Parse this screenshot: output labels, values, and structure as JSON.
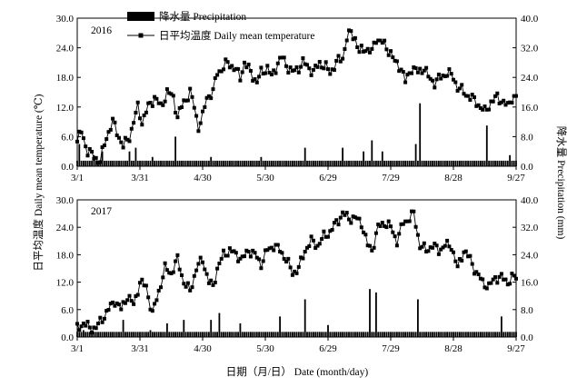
{
  "figure": {
    "y_left_label": "日平均温度 Daily mean temperature (℃)",
    "y_right_label": "降水量 Precipitation (mm)",
    "x_label": "日期（月/日） Date (month/day)",
    "legend": {
      "precip_label": "降水量 Precipitation",
      "temp_label": "日平均温度 Daily mean temperature"
    }
  },
  "chart_data": [
    {
      "type": "bar",
      "panel_label": "2016",
      "x_ticks": [
        "3/1",
        "3/31",
        "4/30",
        "5/30",
        "6/29",
        "7/29",
        "8/28",
        "9/27"
      ],
      "x_range_days": [
        0,
        210
      ],
      "y_left_range": [
        0,
        30
      ],
      "y_left_ticks": [
        "0.0",
        "6.0",
        "12.0",
        "18.0",
        "24.0",
        "30.0"
      ],
      "y_right_range": [
        0,
        40
      ],
      "y_right_ticks": [
        "0.0",
        "8.0",
        "16.0",
        "24.0",
        "32.0",
        "40.0"
      ],
      "series": [
        {
          "name": "日平均温度 Daily mean temperature",
          "kind": "line",
          "axis": "left",
          "anchors": [
            [
              0,
              5
            ],
            [
              2,
              7
            ],
            [
              5,
              3
            ],
            [
              8,
              2
            ],
            [
              11,
              1
            ],
            [
              14,
              6
            ],
            [
              17,
              9
            ],
            [
              19,
              7
            ],
            [
              22,
              4
            ],
            [
              25,
              6
            ],
            [
              27,
              9
            ],
            [
              29,
              12
            ],
            [
              31,
              9
            ],
            [
              34,
              12
            ],
            [
              37,
              14
            ],
            [
              40,
              12
            ],
            [
              43,
              15
            ],
            [
              46,
              14
            ],
            [
              48,
              10
            ],
            [
              51,
              13
            ],
            [
              54,
              15
            ],
            [
              56,
              12
            ],
            [
              58,
              8
            ],
            [
              60,
              10
            ],
            [
              62,
              14
            ],
            [
              65,
              15
            ],
            [
              67,
              19
            ],
            [
              70,
              20
            ],
            [
              72,
              21
            ],
            [
              75,
              20
            ],
            [
              78,
              18
            ],
            [
              80,
              21
            ],
            [
              83,
              19
            ],
            [
              86,
              17
            ],
            [
              88,
              19
            ],
            [
              91,
              20
            ],
            [
              93,
              18
            ],
            [
              96,
              21
            ],
            [
              98,
              22
            ],
            [
              101,
              20
            ],
            [
              103,
              19
            ],
            [
              106,
              20
            ],
            [
              108,
              21
            ],
            [
              111,
              20
            ],
            [
              113,
              19
            ],
            [
              116,
              21
            ],
            [
              119,
              20
            ],
            [
              121,
              19
            ],
            [
              124,
              21
            ],
            [
              127,
              22
            ],
            [
              129,
              26
            ],
            [
              131,
              27
            ],
            [
              133,
              26
            ],
            [
              135,
              23
            ],
            [
              138,
              24
            ],
            [
              141,
              23
            ],
            [
              143,
              26
            ],
            [
              146,
              25
            ],
            [
              148,
              24
            ],
            [
              150,
              23
            ],
            [
              152,
              21
            ],
            [
              155,
              20
            ],
            [
              157,
              17
            ],
            [
              160,
              20
            ],
            [
              163,
              19
            ],
            [
              166,
              20
            ],
            [
              168,
              18
            ],
            [
              171,
              17
            ],
            [
              174,
              18
            ],
            [
              177,
              19
            ],
            [
              180,
              18
            ],
            [
              182,
              16
            ],
            [
              185,
              15
            ],
            [
              188,
              14
            ],
            [
              191,
              13
            ],
            [
              193,
              12
            ],
            [
              195,
              11
            ],
            [
              198,
              13
            ],
            [
              201,
              14
            ],
            [
              204,
              13
            ],
            [
              206,
              12
            ],
            [
              208,
              14
            ]
          ],
          "jitter_amplitude": 1.2
        },
        {
          "name": "降水量 Precipitation",
          "kind": "bar",
          "axis": "right",
          "base_value": 1.5,
          "big_bars": [
            [
              1,
              6
            ],
            [
              8,
              3
            ],
            [
              12,
              4
            ],
            [
              25,
              4
            ],
            [
              28,
              5
            ],
            [
              36,
              2.5
            ],
            [
              47,
              8
            ],
            [
              64,
              2.5
            ],
            [
              88,
              2.5
            ],
            [
              109,
              5
            ],
            [
              127,
              5
            ],
            [
              137,
              4
            ],
            [
              141,
              7
            ],
            [
              146,
              4
            ],
            [
              162,
              6
            ],
            [
              164,
              17
            ],
            [
              196,
              11
            ],
            [
              207,
              3
            ]
          ]
        }
      ]
    },
    {
      "type": "bar",
      "panel_label": "2017",
      "x_ticks": [
        "3/1",
        "3/31",
        "4/30",
        "5/30",
        "6/29",
        "7/29",
        "8/28",
        "9/27"
      ],
      "x_range_days": [
        0,
        210
      ],
      "y_left_range": [
        0,
        30
      ],
      "y_left_ticks": [
        "0.0",
        "6.0",
        "12.0",
        "18.0",
        "24.0",
        "30.0"
      ],
      "y_right_range": [
        0,
        40
      ],
      "y_right_ticks": [
        "0.0",
        "8.0",
        "16.0",
        "24.0",
        "32.0",
        "40.0"
      ],
      "series": [
        {
          "name": "日平均温度 Daily mean temperature",
          "kind": "line",
          "axis": "left",
          "anchors": [
            [
              0,
              2
            ],
            [
              3,
              3
            ],
            [
              6,
              2
            ],
            [
              9,
              2
            ],
            [
              12,
              4
            ],
            [
              15,
              6
            ],
            [
              18,
              8
            ],
            [
              21,
              6
            ],
            [
              24,
              9
            ],
            [
              27,
              7
            ],
            [
              30,
              12
            ],
            [
              33,
              11
            ],
            [
              36,
              5
            ],
            [
              39,
              10
            ],
            [
              42,
              15
            ],
            [
              45,
              14
            ],
            [
              48,
              17
            ],
            [
              51,
              12
            ],
            [
              54,
              10
            ],
            [
              57,
              15
            ],
            [
              60,
              17
            ],
            [
              63,
              12
            ],
            [
              65,
              11
            ],
            [
              67,
              15
            ],
            [
              70,
              18
            ],
            [
              73,
              19
            ],
            [
              76,
              18
            ],
            [
              79,
              17
            ],
            [
              82,
              19
            ],
            [
              85,
              18
            ],
            [
              88,
              16
            ],
            [
              91,
              19
            ],
            [
              94,
              20
            ],
            [
              97,
              19
            ],
            [
              100,
              17
            ],
            [
              103,
              14
            ],
            [
              106,
              15
            ],
            [
              109,
              19
            ],
            [
              112,
              21
            ],
            [
              115,
              20
            ],
            [
              118,
              22
            ],
            [
              121,
              23
            ],
            [
              124,
              25
            ],
            [
              127,
              27
            ],
            [
              130,
              26
            ],
            [
              133,
              26
            ],
            [
              136,
              25
            ],
            [
              139,
              20
            ],
            [
              141,
              19
            ],
            [
              144,
              24
            ],
            [
              147,
              25
            ],
            [
              150,
              24
            ],
            [
              153,
              21
            ],
            [
              156,
              25
            ],
            [
              159,
              26
            ],
            [
              161,
              27
            ],
            [
              164,
              20
            ],
            [
              167,
              19
            ],
            [
              170,
              20
            ],
            [
              173,
              19
            ],
            [
              176,
              20
            ],
            [
              179,
              20
            ],
            [
              182,
              15
            ],
            [
              185,
              19
            ],
            [
              188,
              17
            ],
            [
              191,
              14
            ],
            [
              194,
              12
            ],
            [
              197,
              11
            ],
            [
              200,
              13
            ],
            [
              203,
              13
            ],
            [
              206,
              12
            ],
            [
              208,
              13
            ]
          ],
          "jitter_amplitude": 1.2
        },
        {
          "name": "降水量 Precipitation",
          "kind": "bar",
          "axis": "right",
          "base_value": 1.5,
          "big_bars": [
            [
              3,
              2
            ],
            [
              22,
              5
            ],
            [
              35,
              2
            ],
            [
              43,
              4
            ],
            [
              51,
              5
            ],
            [
              64,
              5
            ],
            [
              68,
              7
            ],
            [
              78,
              4
            ],
            [
              97,
              6
            ],
            [
              109,
              11
            ],
            [
              120,
              3.5
            ],
            [
              140,
              14
            ],
            [
              143,
              13
            ],
            [
              163,
              11
            ],
            [
              203,
              6
            ]
          ]
        }
      ]
    }
  ]
}
